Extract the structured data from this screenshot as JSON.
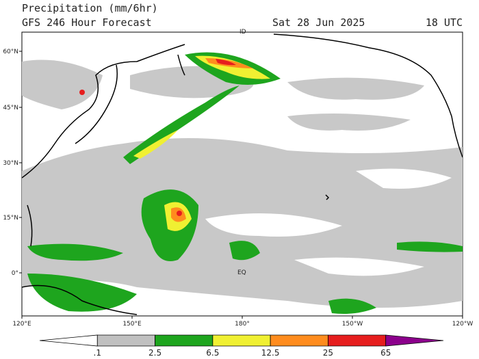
{
  "header": {
    "title": "Precipitation (mm/6hr)",
    "model_line": "GFS 246 Hour Forecast",
    "date": "Sat 28 Jun 2025",
    "time": "18 UTC"
  },
  "map": {
    "lat_labels": [
      "60°N",
      "45°N",
      "30°N",
      "15°N",
      "0°"
    ],
    "lon_labels": [
      "120°E",
      "150°E",
      "180°",
      "150°W",
      "120°W"
    ],
    "annotations": [
      "ID",
      "EQ"
    ]
  },
  "colorbar": {
    "labels": [
      ".1",
      "2.5",
      "6.5",
      "12.5",
      "25",
      "65"
    ],
    "colors": [
      "#ffffff",
      "#c0c0c0",
      "#1ea51e",
      "#f0f032",
      "#ff8c1e",
      "#e61e1e",
      "#8c008c"
    ]
  }
}
